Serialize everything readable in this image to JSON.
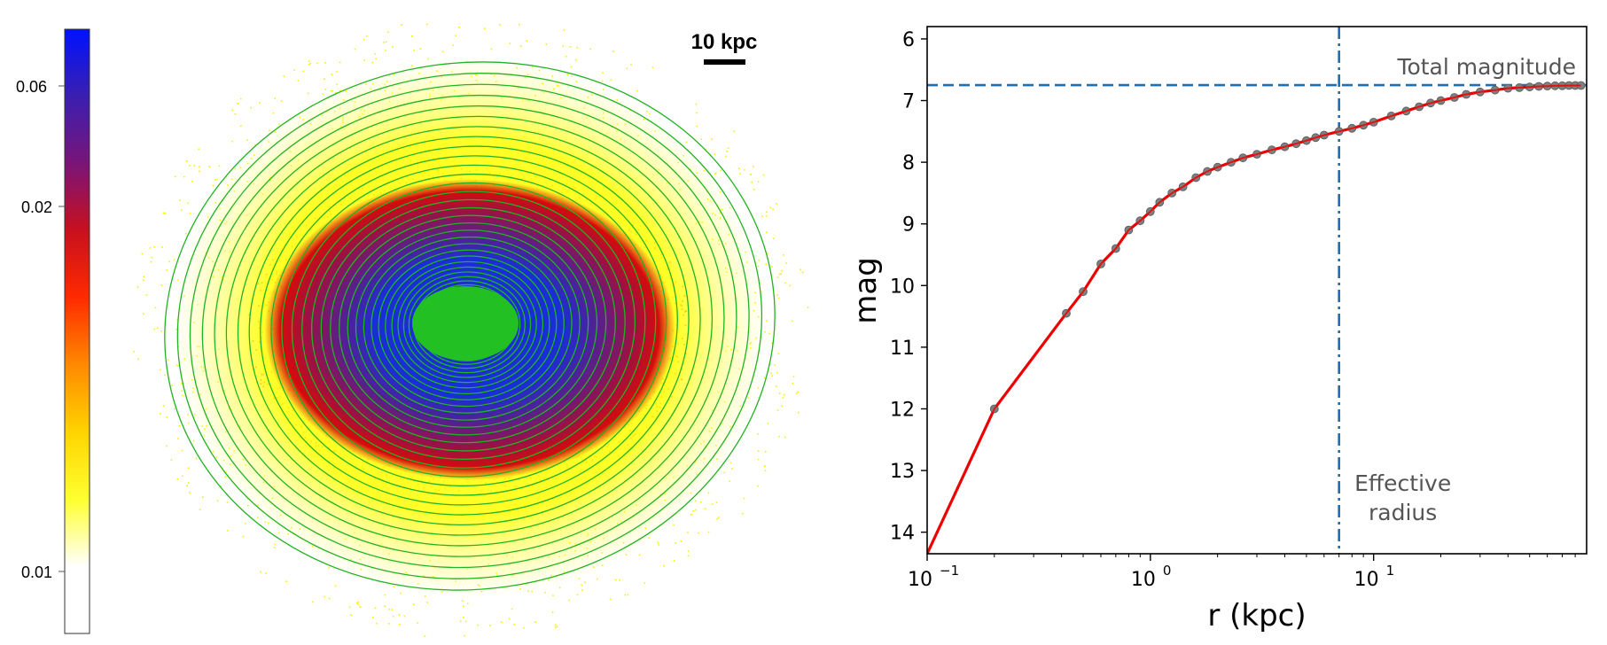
{
  "galaxy_map": {
    "scale_bar_label": "10 kpc",
    "colorbar": {
      "ticks": [
        {
          "label": "0.06",
          "value": 0.06
        },
        {
          "label": "0.02",
          "value": 0.02
        },
        {
          "label": "0.01",
          "value": 0.01
        }
      ],
      "gradient": [
        "#0012ff",
        "#3a1fb0",
        "#7a1478",
        "#c8101e",
        "#ff2a00",
        "#ff8a00",
        "#ffd400",
        "#ffff30",
        "#ffffff",
        "#ffffff"
      ]
    },
    "colors": {
      "contour": "#22b322",
      "core": "#22c022",
      "blue_zone": "#1a2ed6",
      "purple_zone": "#55208f",
      "red_zone": "#d40c0c",
      "yellow_zone": "#ffff10"
    },
    "contour_count": 34
  },
  "chart_data": [
    {
      "type": "line",
      "xlabel": "r (kpc)",
      "ylabel": "mag",
      "xscale": "log",
      "xlim": [
        0.1,
        90
      ],
      "ylim": [
        14.35,
        5.8
      ],
      "y_inverted": true,
      "xticks": [
        {
          "value": 0.1,
          "base": "10",
          "exp": "−1"
        },
        {
          "value": 1,
          "base": "10",
          "exp": "0"
        },
        {
          "value": 10,
          "base": "10",
          "exp": "1"
        }
      ],
      "yticks": [
        6,
        7,
        8,
        9,
        10,
        11,
        12,
        13,
        14
      ],
      "series": [
        {
          "color": "#ee0000",
          "marker_color": "#808080",
          "x": [
            0.1,
            0.2,
            0.42,
            0.5,
            0.6,
            0.7,
            0.8,
            0.9,
            1.0,
            1.1,
            1.25,
            1.4,
            1.6,
            1.8,
            2.0,
            2.3,
            2.6,
            3.0,
            3.5,
            4.0,
            4.5,
            5.0,
            5.5,
            6.0,
            7.0,
            8.0,
            9.0,
            10,
            12,
            14,
            16,
            18,
            20,
            23,
            26,
            30,
            35,
            40,
            45,
            50,
            55,
            60,
            65,
            70,
            75,
            80,
            85
          ],
          "y": [
            14.35,
            12.0,
            10.45,
            10.1,
            9.65,
            9.4,
            9.1,
            8.95,
            8.8,
            8.65,
            8.5,
            8.4,
            8.25,
            8.15,
            8.08,
            8.0,
            7.93,
            7.87,
            7.8,
            7.75,
            7.7,
            7.65,
            7.6,
            7.56,
            7.5,
            7.45,
            7.4,
            7.35,
            7.25,
            7.17,
            7.1,
            7.04,
            7.0,
            6.95,
            6.9,
            6.86,
            6.83,
            6.8,
            6.79,
            6.78,
            6.77,
            6.765,
            6.76,
            6.76,
            6.755,
            6.755,
            6.755
          ],
          "marker_from_index": 1
        }
      ],
      "reference_lines": [
        {
          "orientation": "horizontal",
          "value": 6.75,
          "style": "dashed",
          "color": "#1f6fb0",
          "label": "Total magnitude"
        },
        {
          "orientation": "vertical",
          "value": 7.0,
          "style": "dashdot",
          "color": "#1f6fb0",
          "label_line1": "Effective",
          "label_line2": "radius"
        }
      ],
      "grid": false
    }
  ]
}
